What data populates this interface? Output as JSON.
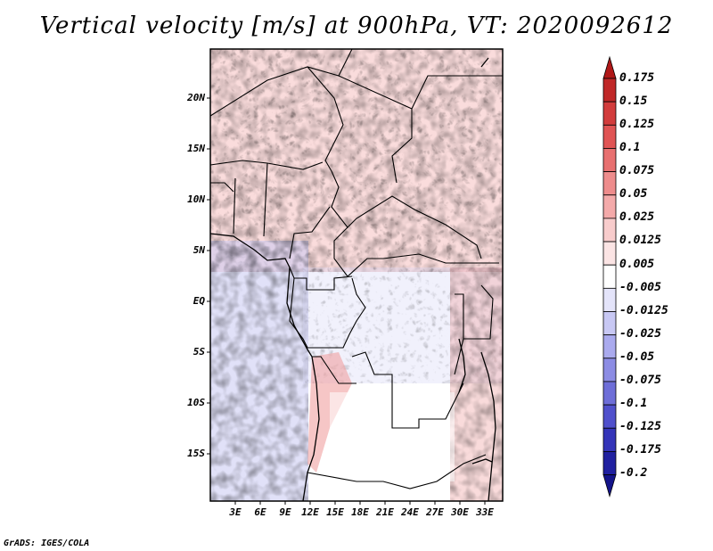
{
  "title": "Vertical velocity [m/s] at 900hPa, VT: 2020092612",
  "credit": "GrADS: IGES/COLA",
  "lat_labels": [
    "20N",
    "15N",
    "10N",
    "5N",
    "EQ",
    "5S",
    "10S",
    "15S"
  ],
  "lon_labels": [
    "3E",
    "6E",
    "9E",
    "12E",
    "15E",
    "18E",
    "21E",
    "24E",
    "27E",
    "30E",
    "33E"
  ],
  "colorbar": {
    "labels": [
      "0.175",
      "0.15",
      "0.125",
      "0.1",
      "0.075",
      "0.05",
      "0.025",
      "0.0125",
      "0.005",
      "-0.005",
      "-0.0125",
      "-0.025",
      "-0.05",
      "-0.075",
      "-0.1",
      "-0.125",
      "-0.175",
      "-0.2"
    ],
    "colors": [
      "#b01818",
      "#c02828",
      "#d23c3c",
      "#e05454",
      "#e87070",
      "#ee8c8c",
      "#f4aaaa",
      "#f8cccc",
      "#fbe4e4",
      "#ffffff",
      "#e4e4fa",
      "#c8c8f4",
      "#aaaaee",
      "#8c8ce4",
      "#6e6ed8",
      "#5050cc",
      "#3434b8",
      "#2020a0",
      "#14148a"
    ]
  }
}
